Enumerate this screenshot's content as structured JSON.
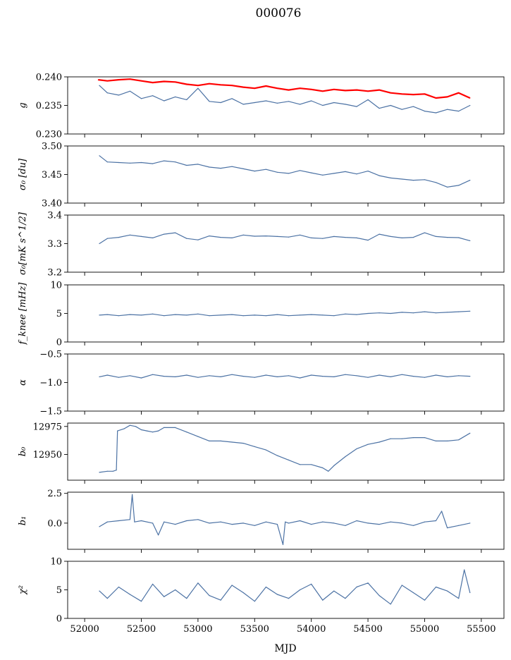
{
  "figure": {
    "title": "000076",
    "xlabel": "MJD"
  },
  "colors": {
    "series": "#4c72a4",
    "reference": "#ff0000",
    "axes": "#000000"
  },
  "chart_data": [
    {
      "type": "line",
      "ylabel": "g",
      "xlim": [
        51850,
        55700
      ],
      "ylim": [
        0.23,
        0.24
      ],
      "yticks": [
        0.23,
        0.235,
        0.24
      ],
      "ytick_labels": [
        "0.230",
        "0.235",
        "0.240"
      ],
      "series": [
        {
          "color": "#4c72a4",
          "x": [
            52130,
            52200,
            52300,
            52400,
            52500,
            52600,
            52700,
            52800,
            52900,
            53000,
            53100,
            53200,
            53300,
            53400,
            53500,
            53600,
            53700,
            53800,
            53900,
            54000,
            54100,
            54200,
            54300,
            54400,
            54500,
            54600,
            54700,
            54800,
            54900,
            55000,
            55100,
            55200,
            55300,
            55400
          ],
          "y": [
            0.2385,
            0.2372,
            0.2368,
            0.2375,
            0.2362,
            0.2367,
            0.2358,
            0.2365,
            0.236,
            0.238,
            0.2357,
            0.2355,
            0.2362,
            0.2352,
            0.2355,
            0.2358,
            0.2354,
            0.2357,
            0.2352,
            0.2358,
            0.235,
            0.2355,
            0.2352,
            0.2348,
            0.236,
            0.2345,
            0.235,
            0.2343,
            0.2348,
            0.234,
            0.2337,
            0.2343,
            0.234,
            0.235
          ]
        },
        {
          "color": "#ff0000",
          "x": [
            52120,
            52200,
            52300,
            52400,
            52500,
            52600,
            52700,
            52800,
            52900,
            53000,
            53100,
            53200,
            53300,
            53400,
            53500,
            53600,
            53700,
            53800,
            53900,
            54000,
            54100,
            54200,
            54300,
            54400,
            54500,
            54600,
            54700,
            54800,
            54900,
            55000,
            55100,
            55200,
            55300,
            55400
          ],
          "y": [
            0.2395,
            0.2393,
            0.2395,
            0.2396,
            0.2393,
            0.239,
            0.2392,
            0.2391,
            0.2387,
            0.2385,
            0.2388,
            0.2386,
            0.2385,
            0.2382,
            0.238,
            0.2384,
            0.238,
            0.2377,
            0.238,
            0.2378,
            0.2375,
            0.2378,
            0.2376,
            0.2377,
            0.2375,
            0.2377,
            0.2372,
            0.237,
            0.2369,
            0.237,
            0.2363,
            0.2365,
            0.2372,
            0.2363
          ]
        }
      ]
    },
    {
      "type": "line",
      "ylabel": "σ₀ [du]",
      "xlim": [
        51850,
        55700
      ],
      "ylim": [
        3.4,
        3.5
      ],
      "yticks": [
        3.4,
        3.45,
        3.5
      ],
      "ytick_labels": [
        "3.40",
        "3.45",
        "3.50"
      ],
      "series": [
        {
          "color": "#4c72a4",
          "x": [
            52130,
            52200,
            52300,
            52400,
            52500,
            52600,
            52700,
            52800,
            52900,
            53000,
            53100,
            53200,
            53300,
            53400,
            53500,
            53600,
            53700,
            53800,
            53900,
            54000,
            54100,
            54200,
            54300,
            54400,
            54500,
            54600,
            54700,
            54800,
            54900,
            55000,
            55100,
            55200,
            55300,
            55400
          ],
          "y": [
            3.483,
            3.472,
            3.471,
            3.47,
            3.471,
            3.469,
            3.474,
            3.472,
            3.466,
            3.468,
            3.463,
            3.461,
            3.464,
            3.46,
            3.456,
            3.459,
            3.454,
            3.452,
            3.457,
            3.453,
            3.449,
            3.452,
            3.455,
            3.451,
            3.456,
            3.448,
            3.444,
            3.442,
            3.44,
            3.441,
            3.436,
            3.428,
            3.431,
            3.44
          ]
        }
      ]
    },
    {
      "type": "line",
      "ylabel": "σ₀[mK s^1/2]",
      "xlim": [
        51850,
        55700
      ],
      "ylim": [
        3.2,
        3.4
      ],
      "yticks": [
        3.2,
        3.3,
        3.4
      ],
      "ytick_labels": [
        "3.2",
        "3.3",
        "3.4"
      ],
      "series": [
        {
          "color": "#4c72a4",
          "x": [
            52130,
            52200,
            52300,
            52400,
            52500,
            52600,
            52700,
            52800,
            52900,
            53000,
            53100,
            53200,
            53300,
            53400,
            53500,
            53600,
            53700,
            53800,
            53900,
            54000,
            54100,
            54200,
            54300,
            54400,
            54500,
            54600,
            54700,
            54800,
            54900,
            55000,
            55100,
            55200,
            55300,
            55400
          ],
          "y": [
            3.3,
            3.318,
            3.322,
            3.33,
            3.325,
            3.32,
            3.333,
            3.338,
            3.318,
            3.313,
            3.327,
            3.322,
            3.32,
            3.33,
            3.326,
            3.327,
            3.325,
            3.323,
            3.33,
            3.32,
            3.318,
            3.325,
            3.322,
            3.32,
            3.312,
            3.333,
            3.325,
            3.32,
            3.322,
            3.338,
            3.325,
            3.322,
            3.321,
            3.31
          ]
        }
      ]
    },
    {
      "type": "line",
      "ylabel": "f_knee [mHz]",
      "xlim": [
        51850,
        55700
      ],
      "ylim": [
        0,
        10
      ],
      "yticks": [
        0,
        5,
        10
      ],
      "ytick_labels": [
        "0",
        "5",
        "10"
      ],
      "series": [
        {
          "color": "#4c72a4",
          "x": [
            52130,
            52200,
            52300,
            52400,
            52500,
            52600,
            52700,
            52800,
            52900,
            53000,
            53100,
            53200,
            53300,
            53400,
            53500,
            53600,
            53700,
            53800,
            53900,
            54000,
            54100,
            54200,
            54300,
            54400,
            54500,
            54600,
            54700,
            54800,
            54900,
            55000,
            55100,
            55200,
            55300,
            55400
          ],
          "y": [
            4.7,
            4.8,
            4.6,
            4.8,
            4.7,
            4.9,
            4.6,
            4.8,
            4.7,
            4.9,
            4.6,
            4.7,
            4.8,
            4.6,
            4.7,
            4.6,
            4.8,
            4.6,
            4.7,
            4.8,
            4.7,
            4.6,
            4.9,
            4.8,
            5.0,
            5.1,
            5.0,
            5.2,
            5.1,
            5.3,
            5.1,
            5.2,
            5.3,
            5.4
          ]
        }
      ]
    },
    {
      "type": "line",
      "ylabel": "α",
      "xlim": [
        51850,
        55700
      ],
      "ylim": [
        -1.5,
        -0.5
      ],
      "yticks": [
        -1.5,
        -1.0,
        -0.5
      ],
      "ytick_labels": [
        "−1.5",
        "−1.0",
        "−0.5"
      ],
      "series": [
        {
          "color": "#4c72a4",
          "x": [
            52130,
            52200,
            52300,
            52400,
            52500,
            52600,
            52700,
            52800,
            52900,
            53000,
            53100,
            53200,
            53300,
            53400,
            53500,
            53600,
            53700,
            53800,
            53900,
            54000,
            54100,
            54200,
            54300,
            54400,
            54500,
            54600,
            54700,
            54800,
            54900,
            55000,
            55100,
            55200,
            55300,
            55400
          ],
          "y": [
            -0.9,
            -0.87,
            -0.91,
            -0.88,
            -0.92,
            -0.86,
            -0.89,
            -0.9,
            -0.87,
            -0.91,
            -0.88,
            -0.9,
            -0.86,
            -0.89,
            -0.91,
            -0.87,
            -0.9,
            -0.88,
            -0.92,
            -0.87,
            -0.89,
            -0.9,
            -0.86,
            -0.88,
            -0.91,
            -0.87,
            -0.9,
            -0.86,
            -0.89,
            -0.91,
            -0.87,
            -0.9,
            -0.88,
            -0.89
          ]
        }
      ]
    },
    {
      "type": "line",
      "ylabel": "b₀",
      "xlim": [
        51850,
        55700
      ],
      "ylim": [
        12927,
        12978
      ],
      "yticks": [
        12950,
        12975
      ],
      "ytick_labels": [
        "12950",
        "12975"
      ],
      "series": [
        {
          "color": "#4c72a4",
          "x": [
            52130,
            52200,
            52250,
            52280,
            52290,
            52350,
            52400,
            52450,
            52500,
            52550,
            52600,
            52650,
            52700,
            52800,
            52900,
            53000,
            53100,
            53200,
            53300,
            53400,
            53500,
            53600,
            53700,
            53800,
            53900,
            54000,
            54100,
            54150,
            54200,
            54300,
            54400,
            54500,
            54600,
            54700,
            54800,
            54900,
            55000,
            55100,
            55200,
            55300,
            55400
          ],
          "y": [
            12934,
            12935,
            12935,
            12936,
            12971,
            12973,
            12976,
            12975,
            12972,
            12971,
            12970,
            12971,
            12974,
            12974,
            12970,
            12966,
            12962,
            12962,
            12961,
            12960,
            12957,
            12954,
            12949,
            12945,
            12941,
            12941,
            12938,
            12935,
            12940,
            12948,
            12955,
            12959,
            12961,
            12964,
            12964,
            12965,
            12965,
            12962,
            12962,
            12963,
            12969
          ]
        }
      ]
    },
    {
      "type": "line",
      "ylabel": "b₁",
      "xlim": [
        51850,
        55700
      ],
      "ylim": [
        -2.2,
        2.6
      ],
      "yticks": [
        0.0,
        2.5
      ],
      "ytick_labels": [
        "0.0",
        "2.5"
      ],
      "series": [
        {
          "color": "#4c72a4",
          "x": [
            52130,
            52200,
            52300,
            52400,
            52420,
            52440,
            52500,
            52600,
            52650,
            52700,
            52800,
            52900,
            53000,
            53100,
            53200,
            53300,
            53400,
            53500,
            53600,
            53700,
            53750,
            53770,
            53800,
            53900,
            54000,
            54100,
            54200,
            54300,
            54400,
            54500,
            54600,
            54700,
            54800,
            54900,
            55000,
            55100,
            55150,
            55200,
            55300,
            55400
          ],
          "y": [
            -0.3,
            0.1,
            0.2,
            0.3,
            2.4,
            0.1,
            0.2,
            0.0,
            -1.0,
            0.1,
            -0.1,
            0.2,
            0.3,
            0.0,
            0.1,
            -0.1,
            0.0,
            -0.2,
            0.1,
            -0.1,
            -1.8,
            0.1,
            0.0,
            0.2,
            -0.1,
            0.1,
            0.0,
            -0.2,
            0.2,
            0.0,
            -0.1,
            0.1,
            0.0,
            -0.2,
            0.1,
            0.2,
            1.0,
            -0.4,
            -0.2,
            0.0
          ]
        }
      ]
    },
    {
      "type": "line",
      "ylabel": "χ²",
      "xlim": [
        51850,
        55700
      ],
      "ylim": [
        0,
        10
      ],
      "yticks": [
        0,
        5,
        10
      ],
      "ytick_labels": [
        "0",
        "5",
        "10"
      ],
      "xticks": [
        52000,
        52500,
        53000,
        53500,
        54000,
        54500,
        55000,
        55500
      ],
      "xtick_labels": [
        "52000",
        "52500",
        "53000",
        "53500",
        "54000",
        "54500",
        "55000",
        "55500"
      ],
      "series": [
        {
          "color": "#4c72a4",
          "x": [
            52130,
            52200,
            52300,
            52400,
            52500,
            52600,
            52700,
            52800,
            52900,
            53000,
            53100,
            53200,
            53300,
            53400,
            53500,
            53600,
            53700,
            53800,
            53900,
            54000,
            54100,
            54200,
            54300,
            54400,
            54500,
            54600,
            54700,
            54800,
            54900,
            55000,
            55100,
            55200,
            55300,
            55350,
            55400
          ],
          "y": [
            4.8,
            3.5,
            5.5,
            4.2,
            3.0,
            6.0,
            3.8,
            5.0,
            3.5,
            6.2,
            4.0,
            3.2,
            5.8,
            4.5,
            3.0,
            5.5,
            4.2,
            3.5,
            5.0,
            6.0,
            3.2,
            4.8,
            3.5,
            5.5,
            6.2,
            4.0,
            2.5,
            5.8,
            4.5,
            3.2,
            5.5,
            4.8,
            3.5,
            8.5,
            4.5
          ]
        }
      ]
    }
  ]
}
